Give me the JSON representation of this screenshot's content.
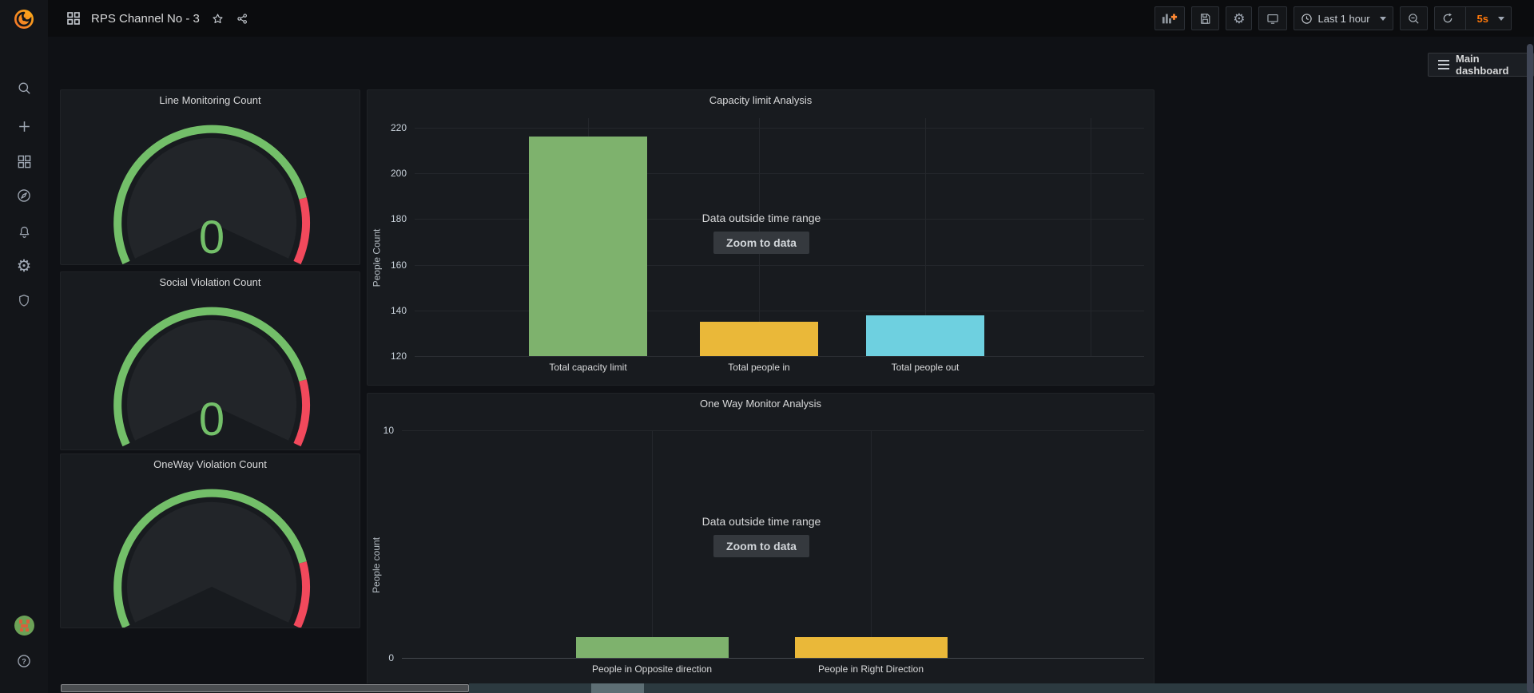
{
  "topbar": {
    "title": "RPS Channel No - 3",
    "time_range": "Last 1 hour",
    "refresh_interval": "5s"
  },
  "main_dashboard": {
    "label": "Main dashboard"
  },
  "sidebar": {
    "icons": [
      "grafana-logo",
      "search",
      "add",
      "dashboards",
      "explore",
      "alerting",
      "configuration",
      "server-admin",
      "avatar",
      "help"
    ]
  },
  "gauges": [
    {
      "title": "Line Monitoring Count",
      "value": "0"
    },
    {
      "title": "Social Violation Count",
      "value": "0"
    },
    {
      "title": "OneWay Violation Count",
      "value": null
    }
  ],
  "chart_data": [
    {
      "type": "bar",
      "title": "Capacity limit Analysis",
      "xlabel": "",
      "ylabel": "People Count",
      "categories": [
        "Total capacity limit",
        "Total people in",
        "Total people out"
      ],
      "values": [
        216,
        135,
        138
      ],
      "bar_colors": [
        "#7eb26d",
        "#eab839",
        "#6ed0e0"
      ],
      "ylim": [
        120,
        225
      ],
      "yticks": [
        120,
        140,
        160,
        180,
        200,
        220
      ],
      "grid": "on",
      "legend": "hidden",
      "overlay": {
        "message": "Data outside time range",
        "button_label": "Zoom to data"
      }
    },
    {
      "type": "bar",
      "title": "One Way Monitor Analysis",
      "xlabel": "",
      "ylabel": "People count",
      "categories": [
        "People in Opposite direction",
        "People in Right Direction"
      ],
      "values": [
        0.9,
        0.9
      ],
      "bar_colors": [
        "#7eb26d",
        "#eab839"
      ],
      "ylim": [
        0,
        10
      ],
      "yticks": [
        0,
        10
      ],
      "grid": "on",
      "legend": "hidden",
      "overlay": {
        "message": "Data outside time range",
        "button_label": "Zoom to data"
      }
    }
  ],
  "colors": {
    "gauge_green": "#73bf69",
    "gauge_red": "#f2495c",
    "gauge_face": "#222529",
    "accent_orange": "#ff780a",
    "panel_bg": "#181b1f"
  }
}
